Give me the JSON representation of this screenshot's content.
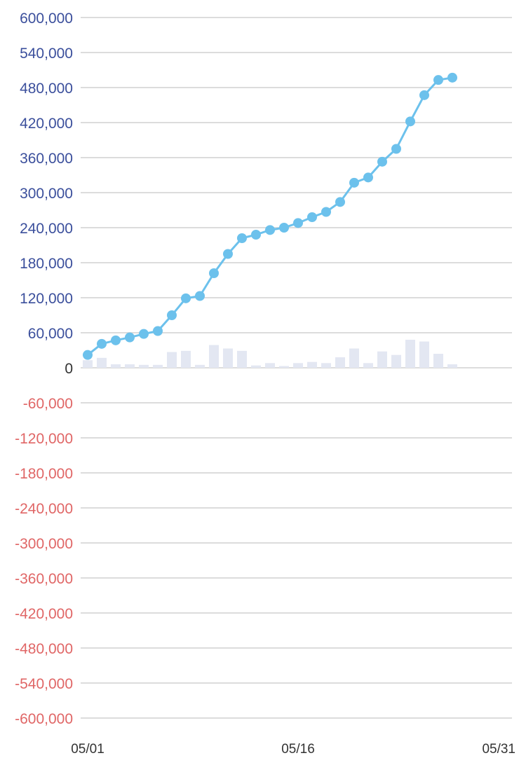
{
  "chart_data": {
    "type": "line",
    "title": "",
    "xlabel": "",
    "ylabel": "",
    "x_tick_labels": [
      "05/01",
      "05/16",
      "05/31"
    ],
    "x_domain": [
      "05/01",
      "05/31"
    ],
    "ylim": [
      -600000,
      600000
    ],
    "y_ticks": [
      600000,
      540000,
      480000,
      420000,
      360000,
      300000,
      240000,
      180000,
      120000,
      60000,
      0,
      -60000,
      -120000,
      -180000,
      -240000,
      -300000,
      -360000,
      -420000,
      -480000,
      -540000,
      -600000
    ],
    "y_tick_labels": [
      "600,000",
      "540,000",
      "480,000",
      "420,000",
      "360,000",
      "300,000",
      "240,000",
      "180,000",
      "120,000",
      "60,000",
      "0",
      "-60,000",
      "-120,000",
      "-180,000",
      "-240,000",
      "-300,000",
      "-360,000",
      "-420,000",
      "-480,000",
      "-540,000",
      "-600,000"
    ],
    "grid": true,
    "dates": [
      "05/01",
      "05/02",
      "05/03",
      "05/04",
      "05/05",
      "05/06",
      "05/07",
      "05/08",
      "05/09",
      "05/10",
      "05/11",
      "05/12",
      "05/13",
      "05/14",
      "05/15",
      "05/16",
      "05/17",
      "05/18",
      "05/19",
      "05/20",
      "05/21",
      "05/22",
      "05/23",
      "05/24",
      "05/25",
      "05/26",
      "05/27"
    ],
    "series": [
      {
        "type": "line",
        "values": [
          22000,
          41000,
          47000,
          52000,
          58000,
          63000,
          90000,
          119000,
          123000,
          162000,
          195000,
          222000,
          228000,
          236000,
          240000,
          248000,
          258000,
          267000,
          284000,
          317000,
          326000,
          353000,
          375000,
          422000,
          467000,
          493000,
          497000
        ]
      },
      {
        "type": "bar",
        "values": [
          13000,
          17000,
          6000,
          6000,
          5000,
          5000,
          27000,
          29000,
          5000,
          39000,
          33000,
          29000,
          4000,
          8000,
          3000,
          8000,
          10000,
          8000,
          18000,
          33000,
          8000,
          28000,
          22000,
          48000,
          45000,
          24000,
          6000
        ]
      }
    ],
    "colors": {
      "positive_tick": "#3b4f9c",
      "negative_tick": "#e06666",
      "zero_tick": "#333333",
      "x_tick": "#333333",
      "grid": "#dcdcdc",
      "line": "#6cc1ec",
      "point": "#6cc1ec",
      "bar": "#e3e7f2"
    }
  }
}
